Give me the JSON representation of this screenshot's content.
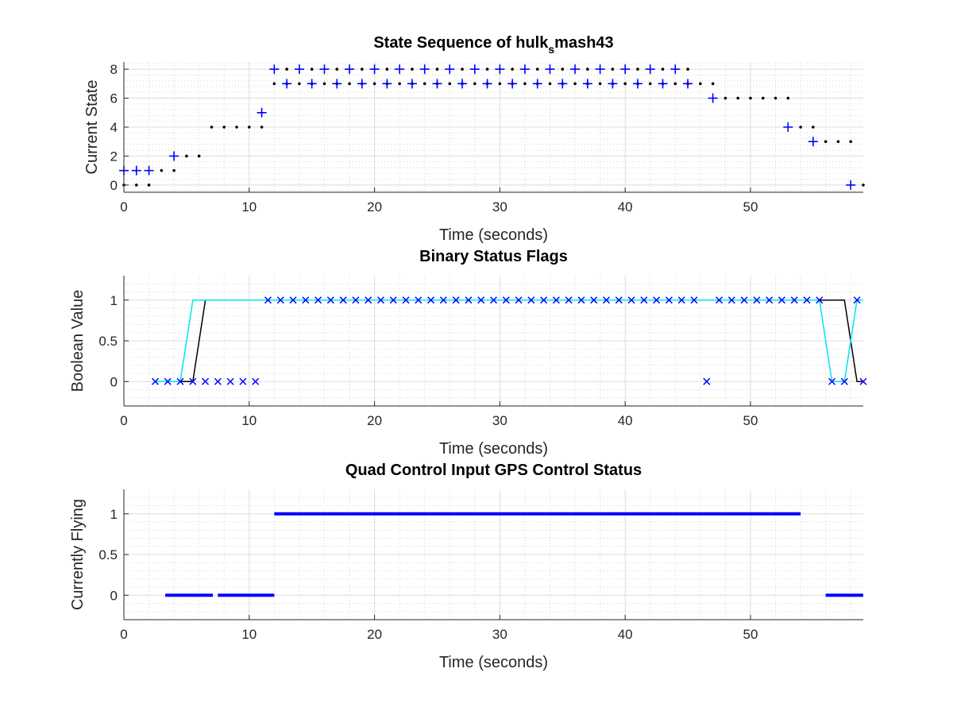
{
  "chart_data": [
    {
      "type": "scatter",
      "title": "State Sequence of hulk",
      "title_subscript": "s",
      "title_suffix": "mash43",
      "xlabel": "Time (seconds)",
      "ylabel": "Current State",
      "xlim": [
        0,
        59
      ],
      "ylim": [
        -0.5,
        8.5
      ],
      "xticks": [
        0,
        10,
        20,
        30,
        40,
        50
      ],
      "yticks": [
        0,
        2,
        4,
        6,
        8
      ],
      "grid": true,
      "minor_grid": true,
      "series": [
        {
          "marker": "dot",
          "color": "#000000",
          "x": [
            0,
            1,
            2,
            3,
            4,
            5,
            6,
            7,
            8,
            9,
            10,
            11,
            12,
            13,
            14,
            15,
            16,
            17,
            18,
            19,
            20,
            21,
            22,
            23,
            24,
            25,
            26,
            27,
            28,
            29,
            30,
            31,
            32,
            33,
            34,
            35,
            36,
            37,
            38,
            39,
            40,
            41,
            42,
            43,
            44,
            45,
            46,
            47,
            48,
            49,
            50,
            51,
            52,
            53,
            54,
            55,
            56,
            57,
            58,
            59
          ],
          "y": [
            0,
            0,
            0,
            1,
            1,
            2,
            2,
            4,
            4,
            4,
            4,
            4,
            7,
            7,
            7,
            7,
            7,
            7,
            7,
            7,
            7,
            7,
            7,
            7,
            7,
            7,
            7,
            7,
            7,
            7,
            7,
            7,
            7,
            7,
            7,
            7,
            7,
            7,
            7,
            7,
            7,
            7,
            7,
            7,
            7,
            7,
            7,
            7,
            6,
            6,
            6,
            6,
            6,
            6,
            4,
            4,
            3,
            3,
            3,
            0
          ]
        },
        {
          "marker": "dot",
          "color": "#000000",
          "x": [
            13,
            15,
            17,
            19,
            21,
            23,
            25,
            27,
            29,
            31,
            33,
            35,
            37,
            39,
            41,
            43,
            45
          ],
          "y": [
            8,
            8,
            8,
            8,
            8,
            8,
            8,
            8,
            8,
            8,
            8,
            8,
            8,
            8,
            8,
            8,
            8
          ]
        },
        {
          "marker": "plus",
          "color": "#0000ff",
          "x": [
            0,
            1,
            2,
            4,
            11,
            12,
            13,
            14,
            15,
            16,
            17,
            18,
            19,
            20,
            21,
            22,
            23,
            24,
            25,
            26,
            27,
            28,
            29,
            30,
            31,
            32,
            33,
            34,
            35,
            36,
            37,
            38,
            39,
            40,
            41,
            42,
            43,
            44,
            45,
            47,
            53,
            55,
            58
          ],
          "y": [
            1,
            1,
            1,
            2,
            5,
            8,
            7,
            8,
            7,
            8,
            7,
            8,
            7,
            8,
            7,
            8,
            7,
            8,
            7,
            8,
            7,
            8,
            7,
            8,
            7,
            8,
            7,
            8,
            7,
            8,
            7,
            8,
            7,
            8,
            7,
            8,
            7,
            8,
            7,
            6,
            4,
            3,
            0
          ]
        }
      ]
    },
    {
      "type": "line",
      "title": "Binary Status Flags",
      "xlabel": "Time (seconds)",
      "ylabel": "Boolean Value",
      "xlim": [
        0,
        59
      ],
      "ylim": [
        -0.3,
        1.3
      ],
      "xticks": [
        0,
        10,
        20,
        30,
        40,
        50
      ],
      "yticks": [
        0,
        0.5,
        1
      ],
      "grid": true,
      "minor_grid": true,
      "series": [
        {
          "style": "line",
          "color": "#000000",
          "x": [
            2.5,
            5.5,
            6.5,
            55.5,
            57.5,
            58.5,
            59
          ],
          "y": [
            0,
            0,
            1,
            1,
            1,
            0,
            0
          ]
        },
        {
          "style": "line",
          "color": "#00e5ee",
          "x": [
            2.5,
            4.5,
            5.5,
            55.5,
            56.5,
            57.5,
            58.5,
            59
          ],
          "y": [
            0,
            0,
            1,
            1,
            0,
            0,
            1,
            1
          ]
        },
        {
          "style": "marker",
          "marker": "x",
          "color": "#0000ff",
          "x": [
            2.5,
            3.5,
            4.5,
            5.5,
            6.5,
            7.5,
            8.5,
            9.5,
            10.5,
            11.5,
            12.5,
            13.5,
            14.5,
            15.5,
            16.5,
            17.5,
            18.5,
            19.5,
            20.5,
            21.5,
            22.5,
            23.5,
            24.5,
            25.5,
            26.5,
            27.5,
            28.5,
            29.5,
            30.5,
            31.5,
            32.5,
            33.5,
            34.5,
            35.5,
            36.5,
            37.5,
            38.5,
            39.5,
            40.5,
            41.5,
            42.5,
            43.5,
            44.5,
            45.5,
            46.5,
            47.5,
            48.5,
            49.5,
            50.5,
            51.5,
            52.5,
            53.5,
            54.5,
            55.5,
            56.5,
            57.5,
            58.5,
            59
          ],
          "y": [
            0,
            0,
            0,
            0,
            0,
            0,
            0,
            0,
            0,
            1,
            1,
            1,
            1,
            1,
            1,
            1,
            1,
            1,
            1,
            1,
            1,
            1,
            1,
            1,
            1,
            1,
            1,
            1,
            1,
            1,
            1,
            1,
            1,
            1,
            1,
            1,
            1,
            1,
            1,
            1,
            1,
            1,
            1,
            1,
            0,
            1,
            1,
            1,
            1,
            1,
            1,
            1,
            1,
            1,
            0,
            0,
            1,
            0
          ]
        }
      ]
    },
    {
      "type": "line",
      "title": "Quad Control Input GPS Control Status",
      "xlabel": "Time (seconds)",
      "ylabel": "Currently Flying",
      "xlim": [
        0,
        59
      ],
      "ylim": [
        -0.3,
        1.3
      ],
      "xticks": [
        0,
        10,
        20,
        30,
        40,
        50
      ],
      "yticks": [
        0,
        0.5,
        1
      ],
      "grid": true,
      "minor_grid": true,
      "segments": [
        {
          "x": [
            3.3,
            7.1
          ],
          "y": 0
        },
        {
          "x": [
            7.5,
            12.0
          ],
          "y": 0
        },
        {
          "x": [
            12.0,
            54.0
          ],
          "y": 1
        },
        {
          "x": [
            56.0,
            59.0
          ],
          "y": 0
        }
      ],
      "color": "#0000ff"
    }
  ]
}
